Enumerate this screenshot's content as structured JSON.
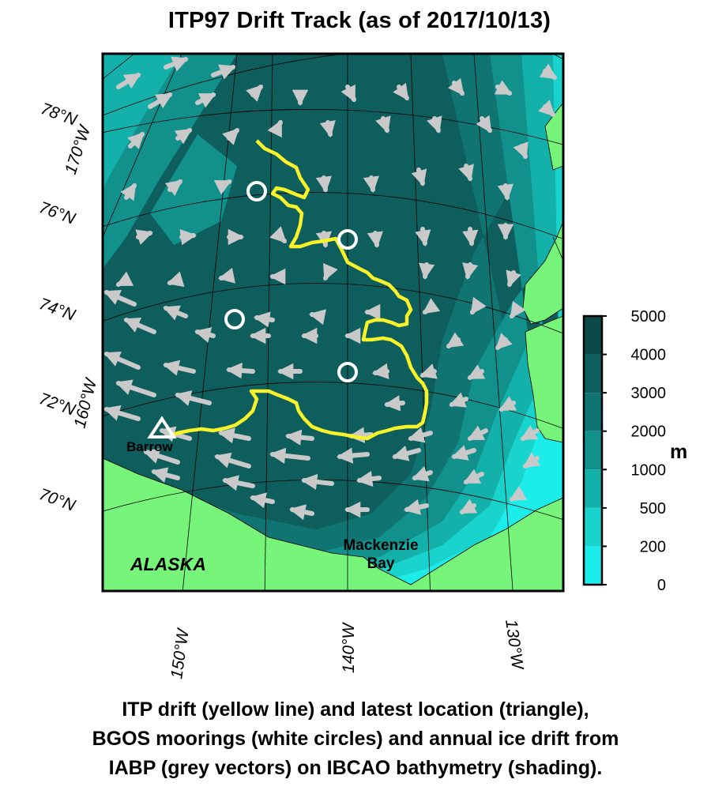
{
  "title": "ITP97 Drift Track (as of 2017/10/13)",
  "latitude_labels": [
    "78°N",
    "76°N",
    "74°N",
    "72°N",
    "70°N"
  ],
  "longitude_labels_left": [
    "170°W",
    "160°W"
  ],
  "longitude_labels_bottom": [
    "150°W",
    "140°W",
    "130°W"
  ],
  "place_labels": {
    "alaska": "ALASKA",
    "mackenzie_line1": "Mackenzie",
    "mackenzie_line2": "Bay",
    "barrow": "Barrow"
  },
  "colorbar": {
    "unit": "m",
    "ticks": [
      "5000",
      "4000",
      "3000",
      "2000",
      "1000",
      "500",
      "200",
      "0"
    ],
    "colors": [
      "#0b4a48",
      "#0d5e5c",
      "#0f7472",
      "#11908c",
      "#14b0aa",
      "#18d4cc",
      "#1cecea"
    ]
  },
  "colors": {
    "land": "#77f57a",
    "drift_track": "#f7f22a",
    "ice_vectors": "#c9c9c9",
    "moorings": "#ffffff"
  },
  "caption": [
    "ITP drift (yellow line) and latest location (triangle),",
    "BGOS moorings (white circles) and annual ice drift from",
    "IABP (grey vectors) on IBCAO bathymetry (shading)."
  ]
}
